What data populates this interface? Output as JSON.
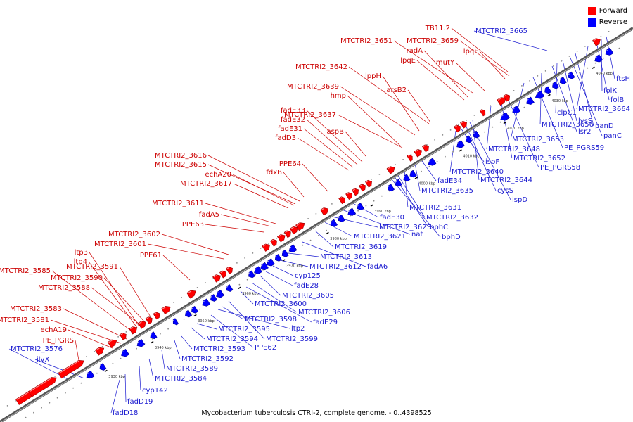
{
  "caption": "Mycobacterium tuberculosis CTRI-2, complete genome. - 0..4398525",
  "legend": [
    {
      "label": "Forward",
      "color": "#ff0000"
    },
    {
      "label": "Reverse",
      "color": "#0000ff"
    }
  ],
  "colors": {
    "forward": "#ff0000",
    "reverse": "#0000ff",
    "backbone": "#888888"
  },
  "tick_labels": [
    "3930 kbp",
    "3940 kbp",
    "3950 kbp",
    "3960 kbp",
    "3970 kbp",
    "3980 kbp",
    "3990 kbp",
    "4000 kbp",
    "4010 kbp",
    "4020 kbp",
    "4030 kbp",
    "4040 kbp"
  ],
  "forward_labels": [
    "PE_PGRS",
    "echA19",
    "MTCTRI2_3581",
    "MTCTRI2_3583",
    "MTCTRI2_3588",
    "MTCTRI2_3590",
    "MTCTRI2_3591",
    "MTCTRI2_3585",
    "ltp4",
    "ltp3",
    "PPE61",
    "MTCTRI2_3601",
    "MTCTRI2_3602",
    "PPE63",
    "fadA5",
    "MTCTRI2_3611",
    "MTCTRI2_3617",
    "echA20",
    "MTCTRI2_3615",
    "MTCTRI2_3616",
    "fdxB",
    "PPE64",
    "fadD3",
    "fadE31",
    "fadE32",
    "fadE33",
    "aspB",
    "MTCTRI2_3637",
    "hmp",
    "MTCTRI2_3639",
    "lppH",
    "MTCTRI2_3642",
    "arsB2",
    "lpqE",
    "radA",
    "MTCTRI2_3651",
    "mutY",
    "lpqF",
    "MTCTRI2_3659",
    "TB11.2"
  ],
  "reverse_labels": [
    "MTCTRI2_3576",
    "ilvX",
    "fadD18",
    "fadD19",
    "cyp142",
    "MTCTRI2_3584",
    "MTCTRI2_3589",
    "MTCTRI2_3592",
    "MTCTRI2_3593",
    "MTCTRI2_3594",
    "MTCTRI2_3595",
    "PPE62",
    "ltp2",
    "MTCTRI2_3598",
    "MTCTRI2_3599",
    "MTCTRI2_3600",
    "fadE29",
    "MTCTRI2_3606",
    "MTCTRI2_3605",
    "fadE28",
    "cyp125",
    "MTCTRI2_3612",
    "MTCTRI2_3613",
    "fadA6",
    "MTCTRI2_3619",
    "MTCTRI2_3621",
    "MTCTRI2_3623",
    "nat",
    "fadE30",
    "bphD",
    "bphC",
    "MTCTRI2_3632",
    "MTCTRI2_3631",
    "MTCTRI2_3635",
    "fadE34",
    "MTCTRI2_3640",
    "ispF",
    "cysS",
    "ispD",
    "MTCTRI2_3644",
    "MTCTRI2_3648",
    "MTCTRI2_3652",
    "PE_PGRS58",
    "MTCTRI2_3653",
    "PE_PGRS59",
    "MTCTRI2_3656",
    "lsr2",
    "clpC1",
    "lysS",
    "panC",
    "panD",
    "MTCTRI2_3664",
    "folB",
    "folK",
    "ftsH",
    "MTCTRI2_3665"
  ]
}
